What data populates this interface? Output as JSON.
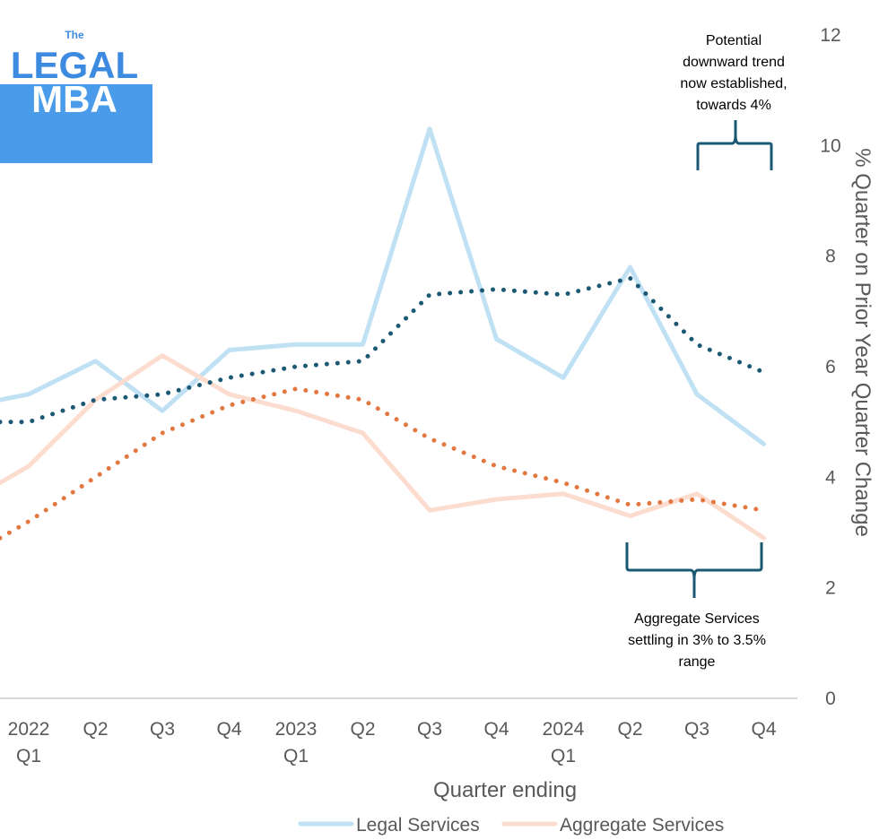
{
  "logo": {
    "small": "The",
    "line1": "LEGAL",
    "line2": "MBA"
  },
  "chart_data": {
    "type": "line",
    "title": "",
    "xlabel": "Quarter ending",
    "ylabel": "% Quarter on Prior Year Quarter Change",
    "ylim": [
      0,
      12
    ],
    "yticks": [
      0,
      2,
      4,
      6,
      8,
      10,
      12
    ],
    "grid": false,
    "legend_position": "bottom",
    "categories": [
      {
        "line1": "2022",
        "line2": "Q1"
      },
      {
        "line1": "Q2",
        "line2": ""
      },
      {
        "line1": "Q3",
        "line2": ""
      },
      {
        "line1": "Q4",
        "line2": ""
      },
      {
        "line1": "2023",
        "line2": "Q1"
      },
      {
        "line1": "Q2",
        "line2": ""
      },
      {
        "line1": "Q3",
        "line2": ""
      },
      {
        "line1": "Q4",
        "line2": ""
      },
      {
        "line1": "2024",
        "line2": "Q1"
      },
      {
        "line1": "Q2",
        "line2": ""
      },
      {
        "line1": "Q3",
        "line2": ""
      },
      {
        "line1": "Q4",
        "line2": ""
      }
    ],
    "series": [
      {
        "name": "Legal Services",
        "color": "#bfe1f3",
        "style": "solid",
        "in_legend": true,
        "lead_in": 5.4,
        "values": [
          5.5,
          6.1,
          5.2,
          6.3,
          6.4,
          6.4,
          10.3,
          6.5,
          5.8,
          7.8,
          5.5,
          4.6
        ]
      },
      {
        "name": "Aggregate Services",
        "color": "#fbdccf",
        "style": "solid",
        "in_legend": true,
        "lead_in": 3.9,
        "values": [
          4.2,
          5.4,
          6.2,
          5.5,
          5.2,
          4.8,
          3.4,
          3.6,
          3.7,
          3.3,
          3.7,
          2.9
        ]
      },
      {
        "name": "Legal Services trend",
        "color": "#1a5874",
        "style": "dotted",
        "in_legend": false,
        "lead_in": 5.0,
        "values": [
          5.0,
          5.4,
          5.5,
          5.8,
          6.0,
          6.1,
          7.3,
          7.4,
          7.3,
          7.6,
          6.4,
          5.9
        ]
      },
      {
        "name": "Aggregate Services trend",
        "color": "#e2773f",
        "style": "dotted",
        "in_legend": false,
        "lead_in": 2.9,
        "values": [
          3.2,
          4.0,
          4.8,
          5.3,
          5.6,
          5.4,
          4.7,
          4.2,
          3.9,
          3.5,
          3.6,
          3.4
        ]
      }
    ],
    "annotations": [
      {
        "id": "top",
        "lines": [
          "Potential",
          "downward trend",
          "now  established,",
          "towards 4%"
        ]
      },
      {
        "id": "bottom",
        "lines": [
          "Aggregate Services",
          "settling in 3% to 3.5%",
          "range"
        ]
      }
    ]
  }
}
